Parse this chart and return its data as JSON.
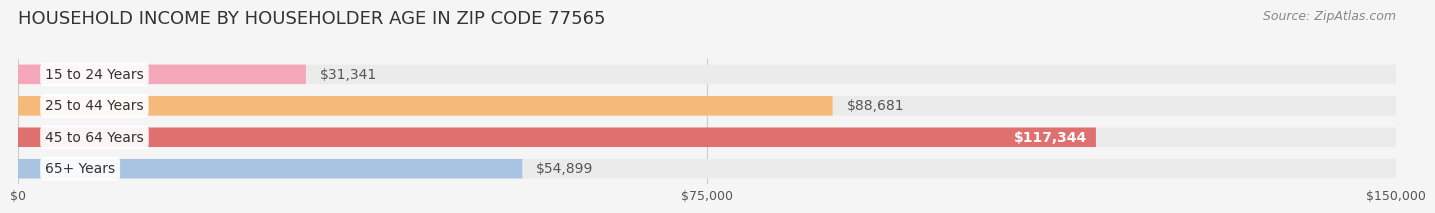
{
  "title": "HOUSEHOLD INCOME BY HOUSEHOLDER AGE IN ZIP CODE 77565",
  "source": "Source: ZipAtlas.com",
  "categories": [
    "15 to 24 Years",
    "25 to 44 Years",
    "45 to 64 Years",
    "65+ Years"
  ],
  "values": [
    31341,
    88681,
    117344,
    54899
  ],
  "bar_colors": [
    "#f4a7b9",
    "#f5b97a",
    "#e07070",
    "#a8c4e0"
  ],
  "label_colors": [
    "#555555",
    "#555555",
    "#ffffff",
    "#555555"
  ],
  "label_inside": [
    false,
    false,
    true,
    false
  ],
  "xlim": [
    0,
    150000
  ],
  "xticks": [
    0,
    75000,
    150000
  ],
  "xticklabels": [
    "$0",
    "$75,000",
    "$150,000"
  ],
  "bg_color": "#f5f5f5",
  "bar_bg_color": "#ebebeb",
  "title_fontsize": 13,
  "source_fontsize": 9,
  "label_fontsize": 9,
  "tick_fontsize": 9,
  "bar_height": 0.62,
  "value_labels": [
    "$31,341",
    "$88,681",
    "$117,344",
    "$54,899"
  ]
}
